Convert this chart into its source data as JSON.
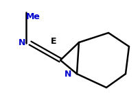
{
  "background": "#ffffff",
  "bond_color": "#000000",
  "me_color": "#0000cd",
  "n1_color": "#0000cd",
  "e_color": "#000000",
  "n2_color": "#0000cd",
  "me_label": "Me",
  "n1_label": "N",
  "e_label": "E",
  "n2_label": "N",
  "figsize": [
    2.05,
    1.55
  ],
  "dpi": 100
}
